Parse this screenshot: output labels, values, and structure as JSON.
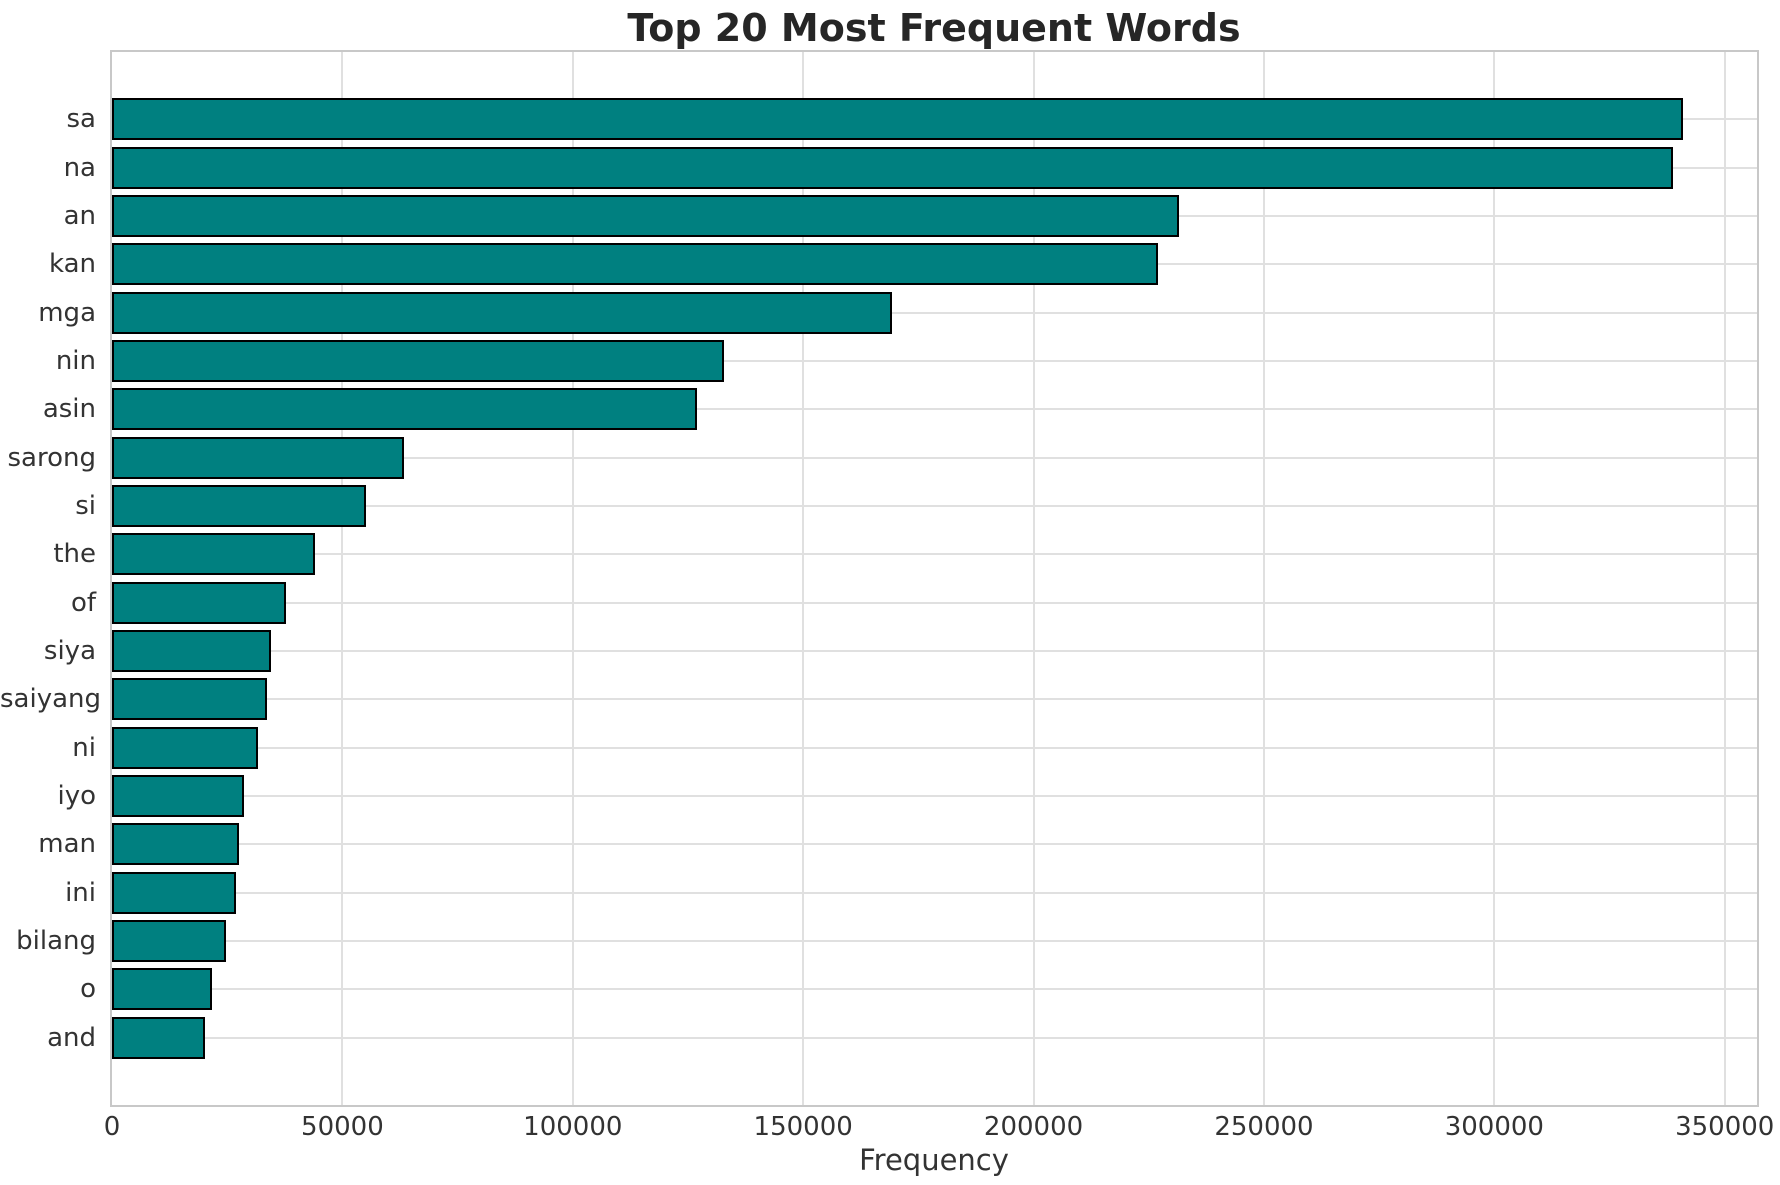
{
  "chart_data": {
    "type": "bar",
    "orientation": "horizontal",
    "title": "Top 20 Most Frequent Words",
    "xlabel": "Frequency",
    "ylabel": "",
    "categories": [
      "sa",
      "na",
      "an",
      "kan",
      "mga",
      "nin",
      "asin",
      "sarong",
      "si",
      "the",
      "of",
      "siya",
      "saiyang",
      "ni",
      "iyo",
      "man",
      "ini",
      "bilang",
      "o",
      "and"
    ],
    "values": [
      340000,
      338000,
      230700,
      226200,
      168500,
      132000,
      126000,
      62600,
      54200,
      43100,
      36900,
      33600,
      32700,
      30900,
      27800,
      26700,
      26100,
      23800,
      20800,
      19400
    ],
    "x_ticks": [
      0,
      50000,
      100000,
      150000,
      200000,
      250000,
      300000,
      350000
    ],
    "xlim": [
      0,
      357000
    ],
    "grid": true,
    "legend": null,
    "colors": {
      "bar_fill": "#008080",
      "bar_edge": "#000000",
      "grid": "#e0e0e0",
      "spine": "#c8c8c8",
      "title_text": "#262626",
      "tick_text": "#333333"
    }
  }
}
